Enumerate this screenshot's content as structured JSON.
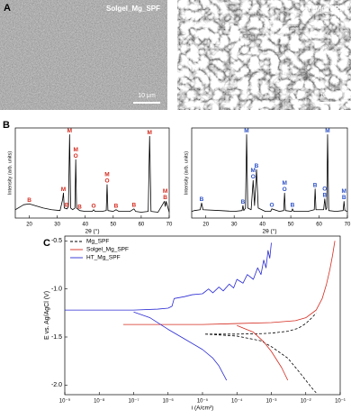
{
  "panel_labels": [
    "A",
    "B",
    "C"
  ],
  "images": [
    {
      "label": "Solgel_Mg_SPF",
      "scale_bar": "10 μm"
    },
    {
      "label": "HT_Mg_SPF",
      "scale_bar": "10 μm"
    }
  ],
  "chart_data": [
    {
      "type": "line",
      "xlabel": "2θ (°)",
      "ylabel": "Intensity (arb. units)",
      "color": "#000000",
      "annotation_color": "#d42a1e",
      "xlim": [
        15,
        70
      ],
      "xticks": [
        20,
        30,
        40,
        50,
        60,
        70
      ],
      "ylim": [
        0,
        108
      ],
      "x": [
        15,
        17,
        18,
        20,
        22,
        25,
        28,
        31,
        31.9,
        32.2,
        32.5,
        33.5,
        34.0,
        34.4,
        34.8,
        35.5,
        36.3,
        36.6,
        36.9,
        38,
        40,
        42.5,
        43,
        43.5,
        46,
        47.5,
        47.8,
        48.1,
        50,
        51,
        52,
        56,
        57.4,
        58,
        60,
        62.5,
        63,
        63.5,
        66,
        68.3,
        68.6,
        68.9,
        70
      ],
      "values": [
        10,
        14,
        16,
        17,
        15,
        12,
        10,
        9,
        22,
        30,
        12,
        11,
        14,
        100,
        12,
        10,
        12,
        70,
        12,
        9,
        8,
        8,
        10,
        8,
        8,
        9,
        40,
        9,
        8,
        10,
        8,
        8,
        11,
        8,
        7,
        8,
        98,
        8,
        7,
        20,
        14,
        20,
        7
      ],
      "annotations": [
        {
          "lines": [
            "B"
          ],
          "x": 20
        },
        {
          "lines": [
            "M"
          ],
          "x": 32.2
        },
        {
          "lines": [
            "B"
          ],
          "x": 33.4
        },
        {
          "lines": [
            "M"
          ],
          "x": 34.4
        },
        {
          "lines": [
            "M",
            "O"
          ],
          "x": 36.6
        },
        {
          "lines": [
            "B"
          ],
          "x": 38
        },
        {
          "lines": [
            "O"
          ],
          "x": 43
        },
        {
          "lines": [
            "M",
            "O"
          ],
          "x": 47.8
        },
        {
          "lines": [
            "B"
          ],
          "x": 51
        },
        {
          "lines": [
            "B"
          ],
          "x": 57.4
        },
        {
          "lines": [
            "M"
          ],
          "x": 63
        },
        {
          "lines": [
            "M",
            "B"
          ],
          "x": 68.6
        }
      ]
    },
    {
      "type": "line",
      "xlabel": "2θ (°)",
      "ylabel": "Intensity (arb. units)",
      "color": "#000000",
      "annotation_color": "#2a4fc4",
      "xlim": [
        15,
        70
      ],
      "xticks": [
        20,
        30,
        40,
        50,
        60,
        70
      ],
      "ylim": [
        0,
        108
      ],
      "x": [
        15,
        16,
        18,
        18.5,
        19,
        25,
        30,
        32.8,
        33.1,
        33.4,
        34.0,
        34.4,
        34.8,
        36.0,
        36.7,
        37.2,
        37.9,
        38.5,
        41,
        42.9,
        43.3,
        46,
        47.5,
        47.8,
        48.1,
        50.3,
        50.6,
        51,
        56,
        58.3,
        58.6,
        58.9,
        61.6,
        62,
        62.4,
        62.7,
        63,
        63.4,
        66,
        68.5,
        68.8,
        69.1,
        70
      ],
      "values": [
        8,
        9,
        10,
        18,
        10,
        9,
        8,
        9,
        15,
        9,
        12,
        100,
        12,
        10,
        45,
        15,
        58,
        12,
        8,
        8,
        11,
        8,
        9,
        30,
        9,
        8,
        11,
        8,
        8,
        10,
        35,
        10,
        10,
        23,
        10,
        12,
        100,
        9,
        8,
        9,
        20,
        9,
        8
      ],
      "annotations": [
        {
          "lines": [
            "B"
          ],
          "x": 18.5
        },
        {
          "lines": [
            "B"
          ],
          "x": 33.1
        },
        {
          "lines": [
            "M"
          ],
          "x": 34.4
        },
        {
          "lines": [
            "M",
            "O"
          ],
          "x": 36.7
        },
        {
          "lines": [
            "B"
          ],
          "x": 37.9
        },
        {
          "lines": [
            "O"
          ],
          "x": 43.3
        },
        {
          "lines": [
            "M",
            "O"
          ],
          "x": 47.8
        },
        {
          "lines": [
            "B"
          ],
          "x": 50.6
        },
        {
          "lines": [
            "B"
          ],
          "x": 58.6
        },
        {
          "lines": [
            "O",
            "B"
          ],
          "x": 62
        },
        {
          "lines": [
            "M"
          ],
          "x": 63
        },
        {
          "lines": [
            "M",
            "B"
          ],
          "x": 68.8
        }
      ]
    },
    {
      "type": "line",
      "xscale": "log",
      "xlabel": "i (A/cm²)",
      "ylabel": "E vs. Ag/AgCl (V)",
      "legend": "upper left",
      "xlim": [
        1e-09,
        0.1
      ],
      "xticks": [
        {
          "value": 1e-09,
          "label": "10⁻⁹"
        },
        {
          "value": 1e-08,
          "label": "10⁻⁸"
        },
        {
          "value": 1e-07,
          "label": "10⁻⁷"
        },
        {
          "value": 1e-06,
          "label": "10⁻⁶"
        },
        {
          "value": 1e-05,
          "label": "10⁻⁵"
        },
        {
          "value": 0.0001,
          "label": "10⁻⁴"
        },
        {
          "value": 0.001,
          "label": "10⁻³"
        },
        {
          "value": 0.01,
          "label": "10⁻²"
        },
        {
          "value": 0.1,
          "label": "10⁻¹"
        }
      ],
      "ylim": [
        -2.1,
        -0.45
      ],
      "yticks": [
        {
          "value": -2,
          "label": "-2.0"
        },
        -1.5,
        {
          "value": -1,
          "label": "-1.0"
        },
        -0.5
      ],
      "series": [
        {
          "name": "Mg_SPF",
          "color": "#000000",
          "dashed": true,
          "x": [
            1.2e-05,
            0.0001,
            0.0005,
            0.001,
            0.003,
            0.006,
            0.01,
            0.015,
            0.02,
            null,
            1.2e-05,
            0.0001,
            0.0005,
            0.001,
            0.003,
            0.006,
            0.01,
            0.015,
            0.02
          ],
          "values": [
            -1.47,
            -1.47,
            -1.465,
            -1.46,
            -1.44,
            -1.41,
            -1.36,
            -1.3,
            -1.25,
            null,
            -1.47,
            -1.49,
            -1.54,
            -1.6,
            -1.72,
            -1.85,
            -1.95,
            -2.03,
            -2.08
          ]
        },
        {
          "name": "Solgel_Mg_SPF",
          "color": "#d42a1e",
          "dashed": false,
          "x": [
            5e-08,
            1e-06,
            1e-05,
            0.0001,
            0.001,
            0.005,
            0.01,
            0.02,
            0.03,
            0.04,
            0.05,
            0.06,
            0.07,
            null,
            0.0001,
            0.0003,
            0.0006,
            0.001,
            0.002,
            0.003
          ],
          "values": [
            -1.37,
            -1.37,
            -1.37,
            -1.36,
            -1.35,
            -1.33,
            -1.3,
            -1.22,
            -1.1,
            -0.95,
            -0.8,
            -0.65,
            -0.5,
            null,
            -1.38,
            -1.45,
            -1.55,
            -1.65,
            -1.82,
            -1.95
          ]
        },
        {
          "name": "HT_Mg_SPF",
          "color": "#2a2ad4",
          "dashed": false,
          "x": [
            1e-09,
            1e-08,
            1e-07,
            5e-07,
            1e-06,
            1.3e-06,
            1.5e-06,
            3e-06,
            5e-06,
            1e-05,
            1.5e-05,
            2e-05,
            3e-05,
            4e-05,
            6e-05,
            8e-05,
            0.0001,
            0.00015,
            0.0002,
            0.0003,
            0.0004,
            0.0005,
            0.0006,
            0.0007,
            0.0008,
            0.0009,
            0.001,
            null,
            1e-07,
            3e-07,
            1e-06,
            3e-06,
            1e-05,
            2e-05,
            3e-05,
            5e-05
          ],
          "values": [
            -1.22,
            -1.22,
            -1.22,
            -1.21,
            -1.2,
            -1.18,
            -1.1,
            -1.08,
            -1.06,
            -1.05,
            -1.0,
            -1.04,
            -0.98,
            -1.02,
            -0.95,
            -0.99,
            -0.9,
            -0.94,
            -0.85,
            -0.9,
            -0.78,
            -0.85,
            -0.7,
            -0.78,
            -0.6,
            -0.68,
            -0.52,
            null,
            -1.24,
            -1.3,
            -1.42,
            -1.52,
            -1.63,
            -1.72,
            -1.8,
            -1.95
          ]
        }
      ]
    }
  ]
}
